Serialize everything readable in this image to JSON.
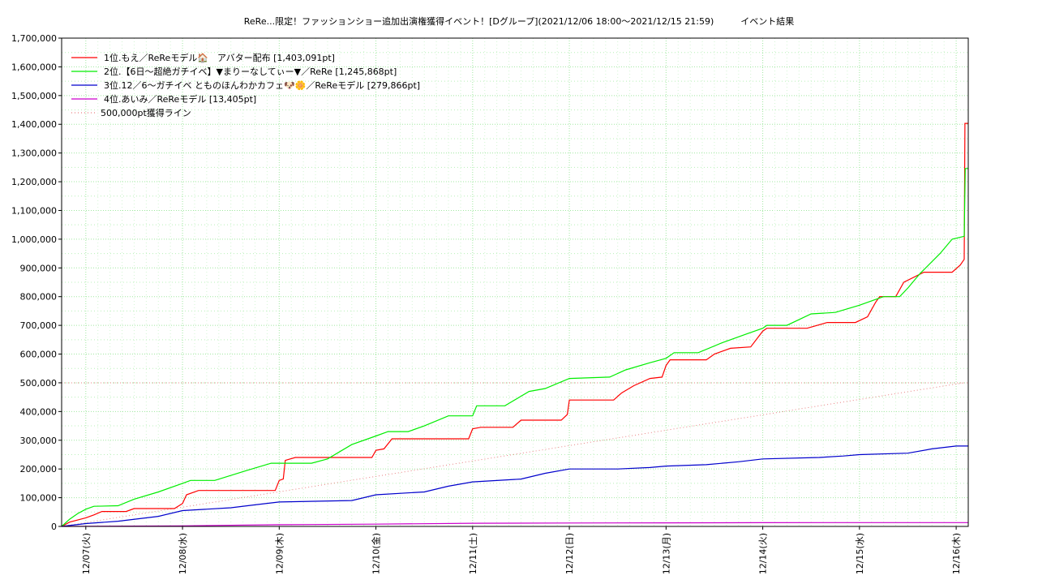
{
  "chart_data": {
    "type": "line",
    "title": "ReRe...限定！ファッションショー追加出演権獲得イベント！[Dグループ](2021/12/06 18:00〜2021/12/15 21:59)　　　イベント結果",
    "xlabel": "",
    "ylabel": "",
    "x_range": [
      "2021-12-06 18:00",
      "2021-12-16 03:00"
    ],
    "ylim": [
      0,
      1700000
    ],
    "grid": true,
    "legend_position": "top-left",
    "y_ticks": [
      "0",
      "100,000",
      "200,000",
      "300,000",
      "400,000",
      "500,000",
      "600,000",
      "700,000",
      "800,000",
      "900,000",
      "1,000,000",
      "1,100,000",
      "1,200,000",
      "1,300,000",
      "1,400,000",
      "1,500,000",
      "1,600,000",
      "1,700,000"
    ],
    "x_ticks": [
      {
        "date": "2021-12-07 00:00",
        "label": "12/07(火)"
      },
      {
        "date": "2021-12-08 00:00",
        "label": "12/08(水)"
      },
      {
        "date": "2021-12-09 00:00",
        "label": "12/09(木)"
      },
      {
        "date": "2021-12-10 00:00",
        "label": "12/10(金)"
      },
      {
        "date": "2021-12-11 00:00",
        "label": "12/11(土)"
      },
      {
        "date": "2021-12-12 00:00",
        "label": "12/12(日)"
      },
      {
        "date": "2021-12-13 00:00",
        "label": "12/13(月)"
      },
      {
        "date": "2021-12-14 00:00",
        "label": "12/14(火)"
      },
      {
        "date": "2021-12-15 00:00",
        "label": "12/15(水)"
      },
      {
        "date": "2021-12-16 00:00",
        "label": "12/16(木)"
      }
    ],
    "series": [
      {
        "name": "1位.もえ／ReReモデル🏠　アバター配布 [1,403,091pt]",
        "color": "#ff0000",
        "points": [
          [
            "2021-12-06 18:00",
            0
          ],
          [
            "2021-12-06 20:00",
            15000
          ],
          [
            "2021-12-07 00:00",
            30000
          ],
          [
            "2021-12-07 02:00",
            40000
          ],
          [
            "2021-12-07 04:00",
            52000
          ],
          [
            "2021-12-07 10:00",
            52000
          ],
          [
            "2021-12-07 12:00",
            62000
          ],
          [
            "2021-12-07 22:00",
            62000
          ],
          [
            "2021-12-08 00:00",
            80000
          ],
          [
            "2021-12-08 01:00",
            110000
          ],
          [
            "2021-12-08 04:00",
            125000
          ],
          [
            "2021-12-08 23:00",
            125000
          ],
          [
            "2021-12-09 00:00",
            160000
          ],
          [
            "2021-12-09 01:00",
            165000
          ],
          [
            "2021-12-09 01:30",
            230000
          ],
          [
            "2021-12-09 04:00",
            240000
          ],
          [
            "2021-12-09 23:00",
            240000
          ],
          [
            "2021-12-10 00:00",
            265000
          ],
          [
            "2021-12-10 02:00",
            270000
          ],
          [
            "2021-12-10 04:00",
            305000
          ],
          [
            "2021-12-10 23:00",
            305000
          ],
          [
            "2021-12-11 00:00",
            340000
          ],
          [
            "2021-12-11 02:00",
            345000
          ],
          [
            "2021-12-11 10:00",
            345000
          ],
          [
            "2021-12-11 12:00",
            370000
          ],
          [
            "2021-12-11 22:00",
            370000
          ],
          [
            "2021-12-11 23:30",
            390000
          ],
          [
            "2021-12-12 00:00",
            440000
          ],
          [
            "2021-12-12 11:00",
            440000
          ],
          [
            "2021-12-12 13:00",
            465000
          ],
          [
            "2021-12-12 16:00",
            490000
          ],
          [
            "2021-12-12 20:00",
            515000
          ],
          [
            "2021-12-12 23:00",
            520000
          ],
          [
            "2021-12-13 00:00",
            560000
          ],
          [
            "2021-12-13 01:00",
            580000
          ],
          [
            "2021-12-13 10:00",
            580000
          ],
          [
            "2021-12-13 12:00",
            600000
          ],
          [
            "2021-12-13 16:00",
            620000
          ],
          [
            "2021-12-13 21:00",
            625000
          ],
          [
            "2021-12-14 00:00",
            680000
          ],
          [
            "2021-12-14 01:00",
            690000
          ],
          [
            "2021-12-14 11:00",
            690000
          ],
          [
            "2021-12-14 16:00",
            710000
          ],
          [
            "2021-12-14 23:00",
            710000
          ],
          [
            "2021-12-15 02:00",
            730000
          ],
          [
            "2021-12-15 04:00",
            780000
          ],
          [
            "2021-12-15 05:00",
            800000
          ],
          [
            "2021-12-15 09:00",
            800000
          ],
          [
            "2021-12-15 11:00",
            850000
          ],
          [
            "2021-12-15 16:00",
            885000
          ],
          [
            "2021-12-15 23:00",
            885000
          ],
          [
            "2021-12-16 01:00",
            910000
          ],
          [
            "2021-12-16 02:00",
            930000
          ],
          [
            "2021-12-16 02:10",
            1403091
          ],
          [
            "2021-12-16 03:00",
            1403091
          ]
        ]
      },
      {
        "name": "2位.【6日〜超絶ガチイベ】▼まりーなしてぃー▼／ReRe [1,245,868pt]",
        "color": "#00ee00",
        "points": [
          [
            "2021-12-06 18:00",
            0
          ],
          [
            "2021-12-06 20:00",
            25000
          ],
          [
            "2021-12-06 22:00",
            45000
          ],
          [
            "2021-12-07 00:00",
            60000
          ],
          [
            "2021-12-07 02:00",
            70000
          ],
          [
            "2021-12-07 08:00",
            72000
          ],
          [
            "2021-12-07 12:00",
            95000
          ],
          [
            "2021-12-07 18:00",
            120000
          ],
          [
            "2021-12-08 00:00",
            150000
          ],
          [
            "2021-12-08 02:00",
            160000
          ],
          [
            "2021-12-08 08:00",
            160000
          ],
          [
            "2021-12-08 16:00",
            195000
          ],
          [
            "2021-12-08 22:00",
            220000
          ],
          [
            "2021-12-09 08:00",
            220000
          ],
          [
            "2021-12-09 12:00",
            235000
          ],
          [
            "2021-12-09 18:00",
            285000
          ],
          [
            "2021-12-10 00:00",
            315000
          ],
          [
            "2021-12-10 03:00",
            330000
          ],
          [
            "2021-12-10 08:00",
            330000
          ],
          [
            "2021-12-10 12:00",
            350000
          ],
          [
            "2021-12-10 18:00",
            385000
          ],
          [
            "2021-12-11 00:00",
            385000
          ],
          [
            "2021-12-11 01:00",
            420000
          ],
          [
            "2021-12-11 08:00",
            420000
          ],
          [
            "2021-12-11 14:00",
            470000
          ],
          [
            "2021-12-11 18:00",
            480000
          ],
          [
            "2021-12-12 00:00",
            515000
          ],
          [
            "2021-12-12 10:00",
            520000
          ],
          [
            "2021-12-12 14:00",
            545000
          ],
          [
            "2021-12-12 20:00",
            570000
          ],
          [
            "2021-12-13 00:00",
            585000
          ],
          [
            "2021-12-13 02:00",
            605000
          ],
          [
            "2021-12-13 08:00",
            605000
          ],
          [
            "2021-12-13 14:00",
            640000
          ],
          [
            "2021-12-13 20:00",
            670000
          ],
          [
            "2021-12-14 00:00",
            690000
          ],
          [
            "2021-12-14 01:00",
            700000
          ],
          [
            "2021-12-14 06:00",
            700000
          ],
          [
            "2021-12-14 12:00",
            740000
          ],
          [
            "2021-12-14 18:00",
            745000
          ],
          [
            "2021-12-15 00:00",
            770000
          ],
          [
            "2021-12-15 04:00",
            790000
          ],
          [
            "2021-12-15 06:00",
            800000
          ],
          [
            "2021-12-15 10:00",
            800000
          ],
          [
            "2021-12-15 12:00",
            830000
          ],
          [
            "2021-12-15 15:00",
            880000
          ],
          [
            "2021-12-15 20:00",
            950000
          ],
          [
            "2021-12-15 23:00",
            1000000
          ],
          [
            "2021-12-16 02:00",
            1010000
          ],
          [
            "2021-12-16 02:15",
            1245868
          ],
          [
            "2021-12-16 03:00",
            1245868
          ]
        ]
      },
      {
        "name": "3位.12／6〜ガチイベ とものほんわかカフェ🐶🌼／ReReモデル [279,866pt]",
        "color": "#0000cc",
        "points": [
          [
            "2021-12-06 18:00",
            0
          ],
          [
            "2021-12-07 00:00",
            10000
          ],
          [
            "2021-12-07 08:00",
            18000
          ],
          [
            "2021-12-07 18:00",
            35000
          ],
          [
            "2021-12-08 00:00",
            55000
          ],
          [
            "2021-12-08 12:00",
            65000
          ],
          [
            "2021-12-08 18:00",
            75000
          ],
          [
            "2021-12-09 00:00",
            85000
          ],
          [
            "2021-12-09 18:00",
            90000
          ],
          [
            "2021-12-10 00:00",
            110000
          ],
          [
            "2021-12-10 12:00",
            120000
          ],
          [
            "2021-12-10 18:00",
            140000
          ],
          [
            "2021-12-11 00:00",
            155000
          ],
          [
            "2021-12-11 12:00",
            165000
          ],
          [
            "2021-12-11 18:00",
            185000
          ],
          [
            "2021-12-12 00:00",
            200000
          ],
          [
            "2021-12-12 12:00",
            200000
          ],
          [
            "2021-12-12 20:00",
            205000
          ],
          [
            "2021-12-13 00:00",
            210000
          ],
          [
            "2021-12-13 10:00",
            215000
          ],
          [
            "2021-12-13 18:00",
            225000
          ],
          [
            "2021-12-14 00:00",
            235000
          ],
          [
            "2021-12-14 14:00",
            240000
          ],
          [
            "2021-12-14 20:00",
            245000
          ],
          [
            "2021-12-15 00:00",
            250000
          ],
          [
            "2021-12-15 12:00",
            255000
          ],
          [
            "2021-12-15 18:00",
            270000
          ],
          [
            "2021-12-16 00:00",
            279866
          ],
          [
            "2021-12-16 03:00",
            279866
          ]
        ]
      },
      {
        "name": "4位.あいみ／ReReモデル [13,405pt]",
        "color": "#cc00cc",
        "points": [
          [
            "2021-12-06 18:00",
            0
          ],
          [
            "2021-12-08 00:00",
            2000
          ],
          [
            "2021-12-09 00:00",
            6000
          ],
          [
            "2021-12-10 00:00",
            8000
          ],
          [
            "2021-12-11 00:00",
            11000
          ],
          [
            "2021-12-12 00:00",
            12000
          ],
          [
            "2021-12-13 00:00",
            12500
          ],
          [
            "2021-12-14 00:00",
            13000
          ],
          [
            "2021-12-15 00:00",
            13400
          ],
          [
            "2021-12-16 03:00",
            13405
          ]
        ]
      }
    ],
    "reference_lines": [
      {
        "name": "500,000pt獲得ライン",
        "color": "#e88080",
        "horizontal_value": 500000,
        "points": [
          [
            "2021-12-06 18:00",
            0
          ],
          [
            "2021-12-16 02:00",
            500000
          ]
        ]
      }
    ]
  }
}
